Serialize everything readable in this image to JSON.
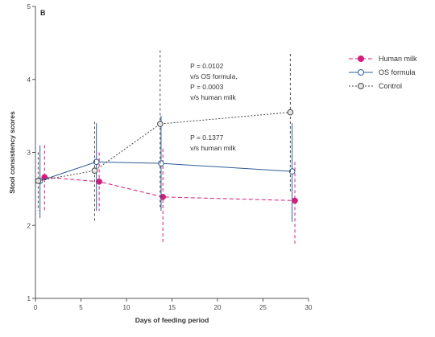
{
  "chart_data": {
    "type": "line",
    "panel_label": "B",
    "xlabel": "Days of feeding period",
    "ylabel": "Stool consistency scores",
    "xlim": [
      0,
      30
    ],
    "ylim": [
      1,
      5
    ],
    "xticks": [
      0,
      5,
      10,
      15,
      20,
      25,
      30
    ],
    "yticks": [
      1,
      2,
      3,
      4,
      5
    ],
    "legend_position": "top-right",
    "series": [
      {
        "name": "Human milk",
        "color": "#d81b7a",
        "line_style": "dashed",
        "marker": "filled-circle",
        "points": [
          {
            "x": 1,
            "y": 2.66,
            "lo": 2.2,
            "hi": 3.1
          },
          {
            "x": 7,
            "y": 2.6,
            "lo": 2.2,
            "hi": 3.0
          },
          {
            "x": 14,
            "y": 2.39,
            "lo": 1.75,
            "hi": 3.05
          },
          {
            "x": 28.5,
            "y": 2.34,
            "lo": 1.75,
            "hi": 2.87
          }
        ]
      },
      {
        "name": "OS formula",
        "color": "#2e5b9a",
        "line_style": "solid",
        "marker": "open-circle",
        "points": [
          {
            "x": 0.5,
            "y": 2.61,
            "lo": 2.1,
            "hi": 3.1
          },
          {
            "x": 6.7,
            "y": 2.87,
            "lo": 2.2,
            "hi": 3.4
          },
          {
            "x": 13.8,
            "y": 2.85,
            "lo": 2.2,
            "hi": 3.5
          },
          {
            "x": 28.2,
            "y": 2.74,
            "lo": 2.05,
            "hi": 3.4
          }
        ]
      },
      {
        "name": "Control",
        "color": "#444444",
        "line_style": "dotted",
        "marker": "open-circle-grey",
        "points": [
          {
            "x": 0.3,
            "y": 2.61,
            "lo": 2.2,
            "hi": 3.0
          },
          {
            "x": 6.5,
            "y": 2.75,
            "lo": 2.06,
            "hi": 3.42
          },
          {
            "x": 13.7,
            "y": 3.39,
            "lo": 2.22,
            "hi": 4.4
          },
          {
            "x": 28.0,
            "y": 3.55,
            "lo": 2.45,
            "hi": 4.35
          }
        ]
      }
    ],
    "annotations": [
      {
        "id": "annotation_upper",
        "lines": [
          "P = 0.0102",
          "v/s OS formula,",
          "P = 0.0003",
          "v/s human milk"
        ],
        "anchor_x": 17.0,
        "anchor_y": 4.15
      },
      {
        "id": "annotation_lower",
        "lines": [
          "P = 0.1377",
          "v/s human milk"
        ],
        "anchor_x": 17.0,
        "anchor_y": 3.17
      }
    ]
  }
}
